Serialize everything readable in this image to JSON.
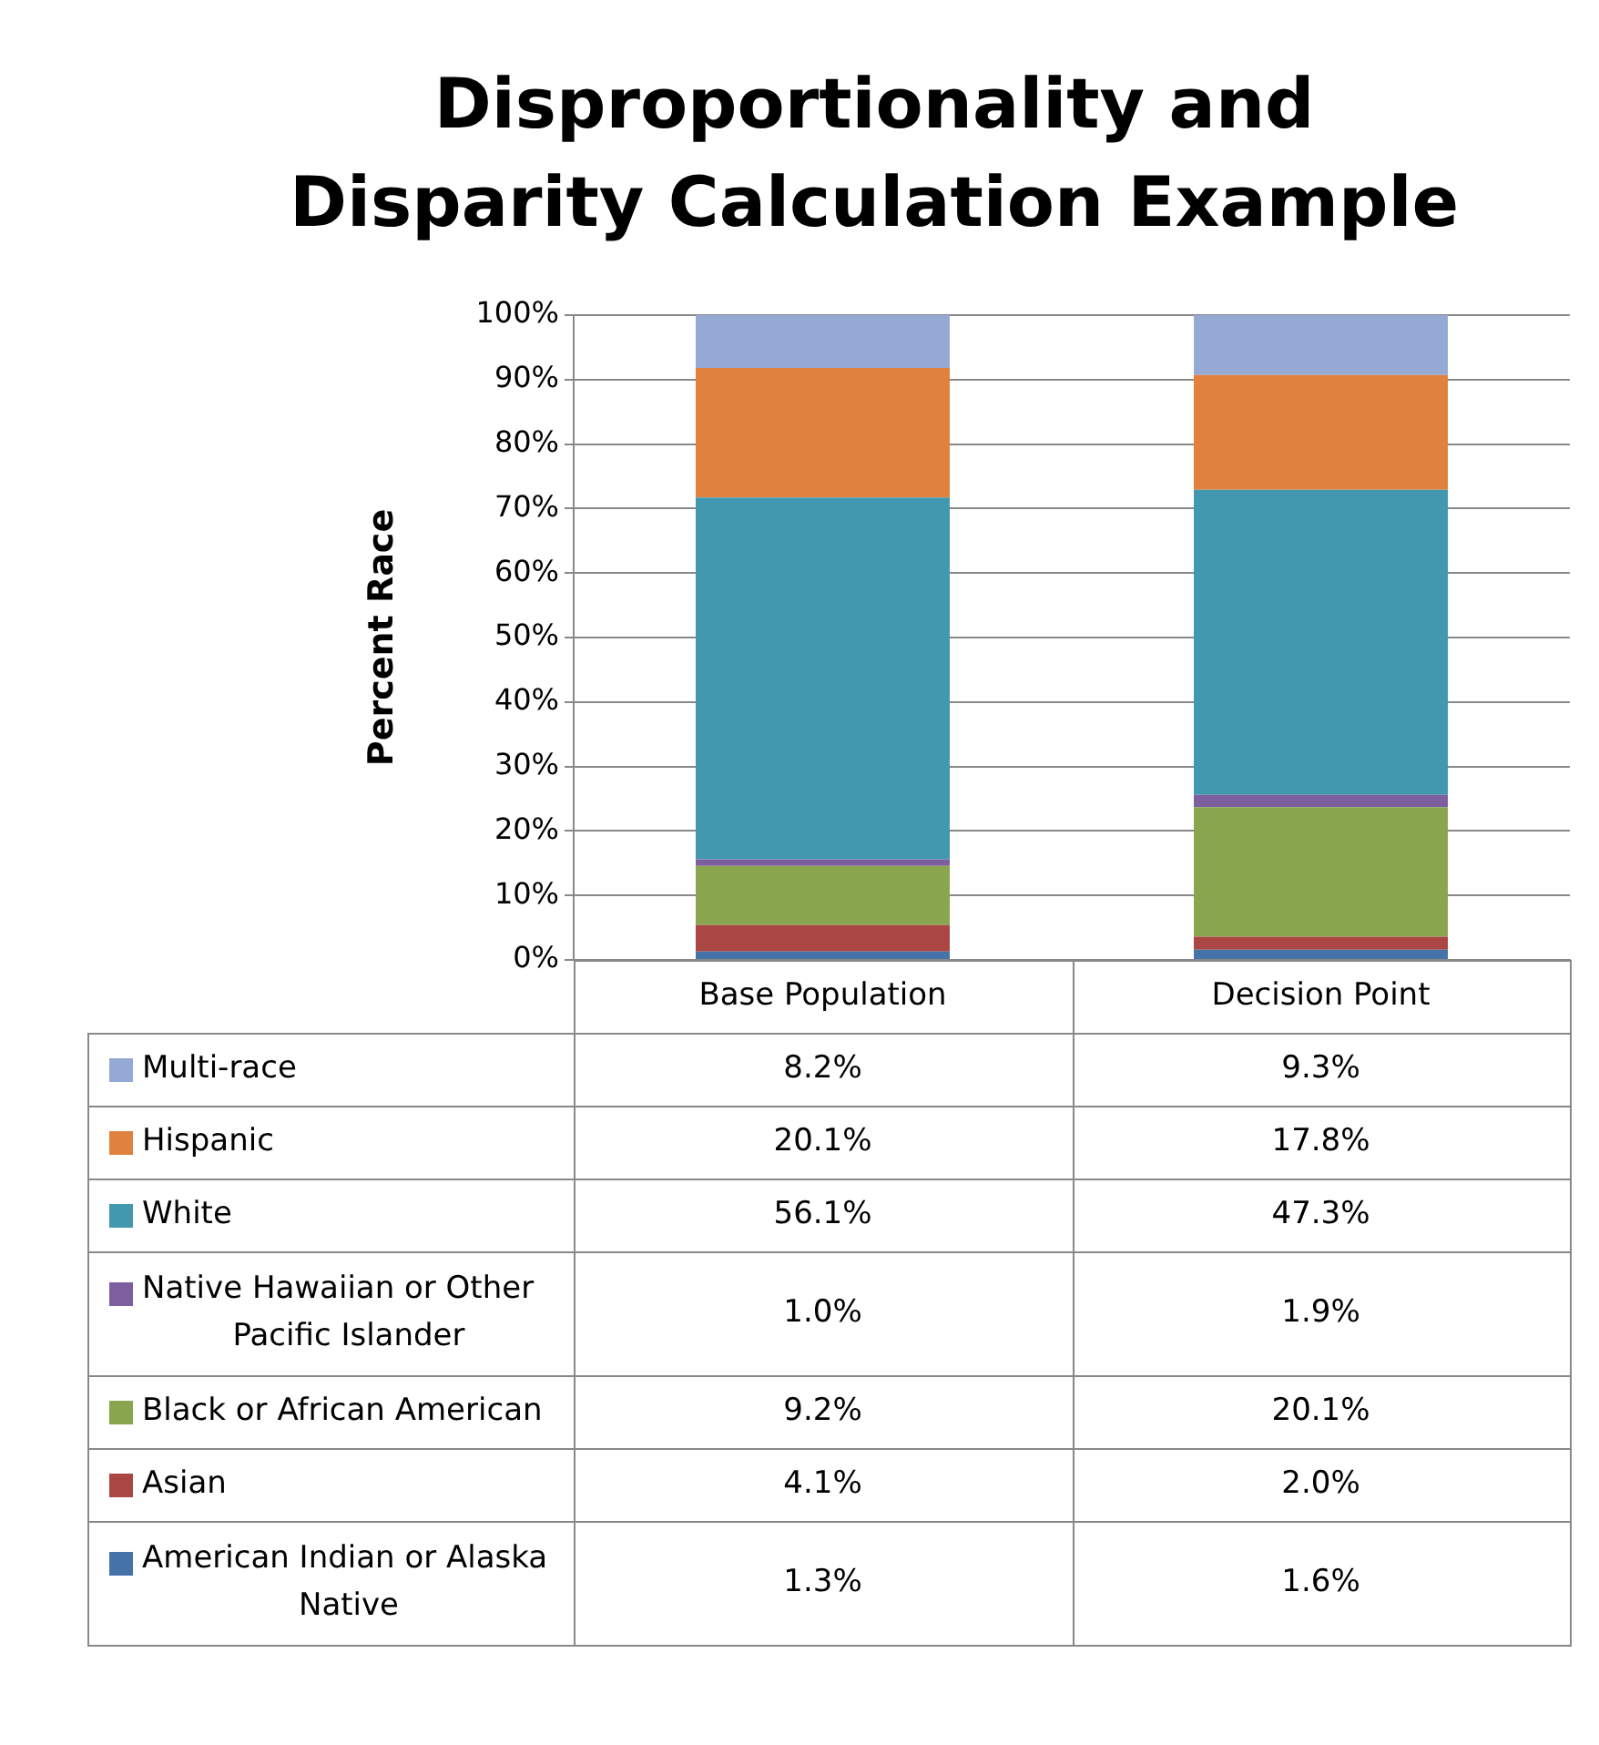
{
  "chart_data": {
    "type": "bar",
    "title": "Disproportionality and Disparity Calculation Example",
    "ylabel": "Percent Race",
    "categories": [
      "Base Population",
      "Decision Point"
    ],
    "stacked": true,
    "grid": "y",
    "legend": "bottom",
    "ylim": [
      0,
      100
    ],
    "yticks": [
      {
        "value": 0,
        "label": "0%"
      },
      {
        "value": 10,
        "label": "10%"
      },
      {
        "value": 20,
        "label": "20%"
      },
      {
        "value": 30,
        "label": "30%"
      },
      {
        "value": 40,
        "label": "40%"
      },
      {
        "value": 50,
        "label": "50%"
      },
      {
        "value": 60,
        "label": "60%"
      },
      {
        "value": 70,
        "label": "70%"
      },
      {
        "value": 80,
        "label": "80%"
      },
      {
        "value": 90,
        "label": "90%"
      },
      {
        "value": 100,
        "label": "100%"
      }
    ],
    "series": [
      {
        "name": "American Indian or Alaska Native",
        "color": "#4572a7",
        "values": [
          1.3,
          1.6
        ],
        "value_labels": [
          "1.3%",
          "1.6%"
        ]
      },
      {
        "name": "Asian",
        "color": "#aa4643",
        "values": [
          4.1,
          2.0
        ],
        "value_labels": [
          "4.1%",
          "2.0%"
        ]
      },
      {
        "name": "Black or African American",
        "color": "#89a54e",
        "values": [
          9.2,
          20.1
        ],
        "value_labels": [
          "9.2%",
          "20.1%"
        ]
      },
      {
        "name": "Native Hawaiian or Other Pacific Islander",
        "color": "#7d5fa0",
        "values": [
          1.0,
          1.9
        ],
        "value_labels": [
          "1.0%",
          "1.9%"
        ]
      },
      {
        "name": "White",
        "color": "#4198af",
        "values": [
          56.1,
          47.3
        ],
        "value_labels": [
          "56.1%",
          "47.3%"
        ]
      },
      {
        "name": "Hispanic",
        "color": "#e0823d",
        "values": [
          20.1,
          17.8
        ],
        "value_labels": [
          "20.1%",
          "17.8%"
        ]
      },
      {
        "name": "Multi-race",
        "color": "#95a9d5",
        "values": [
          8.2,
          9.3
        ],
        "value_labels": [
          "8.2%",
          "9.3%"
        ]
      }
    ]
  }
}
